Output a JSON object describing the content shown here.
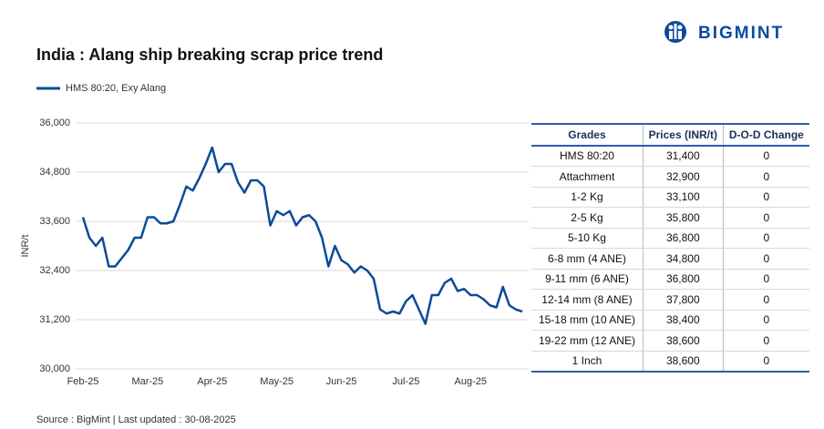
{
  "logo": "BIGMINT",
  "chart_data": {
    "type": "line",
    "title": "India : Alang ship breaking scrap price trend",
    "y_label": "INR/t",
    "categories": [
      "Feb-25",
      null,
      null,
      null,
      null,
      null,
      null,
      null,
      null,
      null,
      "Mar-25",
      null,
      null,
      null,
      null,
      null,
      null,
      null,
      null,
      null,
      "Apr-25",
      null,
      null,
      null,
      null,
      null,
      null,
      null,
      null,
      null,
      "May-25",
      null,
      null,
      null,
      null,
      null,
      null,
      null,
      null,
      null,
      "Jun-25",
      null,
      null,
      null,
      null,
      null,
      null,
      null,
      null,
      null,
      "Jul-25",
      null,
      null,
      null,
      null,
      null,
      null,
      null,
      null,
      null,
      "Aug-25",
      null,
      null,
      null,
      null,
      null,
      null,
      null,
      null
    ],
    "series": [
      {
        "name": "HMS 80:20, Exy Alang",
        "color": "#0b4a9c",
        "values": [
          33700,
          33200,
          33000,
          33200,
          32500,
          32500,
          32700,
          32900,
          33200,
          33200,
          33700,
          33700,
          33550,
          33550,
          33600,
          34000,
          34450,
          34350,
          34650,
          35000,
          35400,
          34800,
          35000,
          35000,
          34550,
          34300,
          34600,
          34600,
          34450,
          33500,
          33850,
          33750,
          33850,
          33500,
          33700,
          33750,
          33600,
          33200,
          32500,
          33000,
          32650,
          32550,
          32350,
          32500,
          32400,
          32200,
          31450,
          31350,
          31400,
          31350,
          31650,
          31800,
          31450,
          31100,
          31800,
          31800,
          32100,
          32200,
          31900,
          31950,
          31800,
          31800,
          31700,
          31550,
          31500,
          32000,
          31550,
          31450,
          31400
        ]
      }
    ],
    "ylim": [
      30000,
      36000
    ],
    "yticks": [
      {
        "value": 30000,
        "label": "30,000"
      },
      {
        "value": 31200,
        "label": "31,200"
      },
      {
        "value": 32400,
        "label": "32,400"
      },
      {
        "value": 33600,
        "label": "33,600"
      },
      {
        "value": 34800,
        "label": "34,800"
      },
      {
        "value": 36000,
        "label": "36,000"
      }
    ],
    "grid": true
  },
  "table": {
    "header": [
      "Grades",
      "Prices (INR/t)",
      "D-O-D Change"
    ],
    "rows": [
      [
        "HMS 80:20",
        "31,400",
        "0"
      ],
      [
        "Attachment",
        "32,900",
        "0"
      ],
      [
        "1-2 Kg",
        "33,100",
        "0"
      ],
      [
        "2-5 Kg",
        "35,800",
        "0"
      ],
      [
        "5-10 Kg",
        "36,800",
        "0"
      ],
      [
        "6-8 mm (4 ANE)",
        "34,800",
        "0"
      ],
      [
        "9-11 mm (6 ANE)",
        "36,800",
        "0"
      ],
      [
        "12-14 mm (8 ANE)",
        "37,800",
        "0"
      ],
      [
        "15-18 mm (10 ANE)",
        "38,400",
        "0"
      ],
      [
        "19-22 mm (12 ANE)",
        "38,600",
        "0"
      ],
      [
        "1 Inch",
        "38,600",
        "0"
      ]
    ]
  },
  "footer": "Source : BigMint | Last updated : 30-08-2025"
}
